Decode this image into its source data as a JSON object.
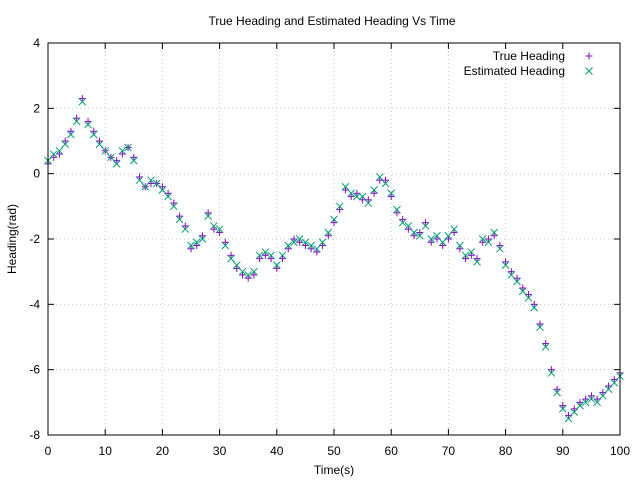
{
  "chart_data": {
    "type": "scatter",
    "title": "True Heading and Estimated Heading Vs Time",
    "xlabel": "Time(s)",
    "ylabel": "Heading(rad)",
    "xlim": [
      0,
      100
    ],
    "ylim": [
      -8,
      4
    ],
    "x_ticks": [
      "0",
      "10",
      "20",
      "30",
      "40",
      "50",
      "60",
      "70",
      "80",
      "90",
      "100"
    ],
    "y_ticks": [
      "4",
      "2",
      "0",
      "-2",
      "-4",
      "-6",
      "-8"
    ],
    "grid": true,
    "legend_position": "top-right",
    "series": [
      {
        "name": "True Heading",
        "marker": "plus",
        "color": "#9400d3",
        "x": [
          0,
          1,
          2,
          3,
          4,
          5,
          6,
          7,
          8,
          9,
          10,
          11,
          12,
          13,
          14,
          15,
          16,
          17,
          18,
          19,
          20,
          21,
          22,
          23,
          24,
          25,
          26,
          27,
          28,
          29,
          30,
          31,
          32,
          33,
          34,
          35,
          36,
          37,
          38,
          39,
          40,
          41,
          42,
          43,
          44,
          45,
          46,
          47,
          48,
          49,
          50,
          51,
          52,
          53,
          54,
          55,
          56,
          57,
          58,
          59,
          60,
          61,
          62,
          63,
          64,
          65,
          66,
          67,
          68,
          69,
          70,
          71,
          72,
          73,
          74,
          75,
          76,
          77,
          78,
          79,
          80,
          81,
          82,
          83,
          84,
          85,
          86,
          87,
          88,
          89,
          90,
          91,
          92,
          93,
          94,
          95,
          96,
          97,
          98,
          99,
          100
        ],
        "y": [
          0.3,
          0.5,
          0.6,
          1.0,
          1.3,
          1.7,
          2.3,
          1.6,
          1.3,
          1.0,
          0.7,
          0.5,
          0.4,
          0.6,
          0.8,
          0.5,
          -0.1,
          -0.4,
          -0.3,
          -0.3,
          -0.4,
          -0.6,
          -0.9,
          -1.3,
          -1.6,
          -2.3,
          -2.2,
          -1.9,
          -1.2,
          -1.7,
          -1.8,
          -2.1,
          -2.5,
          -2.9,
          -3.1,
          -3.2,
          -3.1,
          -2.6,
          -2.5,
          -2.6,
          -2.9,
          -2.6,
          -2.3,
          -2.0,
          -2.1,
          -2.2,
          -2.3,
          -2.4,
          -2.2,
          -1.9,
          -1.5,
          -1.1,
          -0.5,
          -0.7,
          -0.6,
          -0.8,
          -0.8,
          -0.6,
          -0.2,
          -0.2,
          -0.7,
          -1.2,
          -1.4,
          -1.7,
          -1.9,
          -1.8,
          -1.5,
          -2.1,
          -2.0,
          -2.2,
          -2.0,
          -1.8,
          -2.3,
          -2.6,
          -2.5,
          -2.6,
          -2.1,
          -2.0,
          -1.9,
          -2.2,
          -2.7,
          -3.0,
          -3.2,
          -3.5,
          -3.7,
          -4.0,
          -4.6,
          -5.2,
          -6.0,
          -6.6,
          -7.1,
          -7.4,
          -7.2,
          -7.0,
          -6.9,
          -6.8,
          -6.9,
          -6.7,
          -6.5,
          -6.3,
          -6.1
        ]
      },
      {
        "name": "Estimated Heading",
        "marker": "cross",
        "color": "#009e73",
        "x": [
          0,
          1,
          2,
          3,
          4,
          5,
          6,
          7,
          8,
          9,
          10,
          11,
          12,
          13,
          14,
          15,
          16,
          17,
          18,
          19,
          20,
          21,
          22,
          23,
          24,
          25,
          26,
          27,
          28,
          29,
          30,
          31,
          32,
          33,
          34,
          35,
          36,
          37,
          38,
          39,
          40,
          41,
          42,
          43,
          44,
          45,
          46,
          47,
          48,
          49,
          50,
          51,
          52,
          53,
          54,
          55,
          56,
          57,
          58,
          59,
          60,
          61,
          62,
          63,
          64,
          65,
          66,
          67,
          68,
          69,
          70,
          71,
          72,
          73,
          74,
          75,
          76,
          77,
          78,
          79,
          80,
          81,
          82,
          83,
          84,
          85,
          86,
          87,
          88,
          89,
          90,
          91,
          92,
          93,
          94,
          95,
          96,
          97,
          98,
          99,
          100
        ],
        "y": [
          0.4,
          0.6,
          0.7,
          0.9,
          1.2,
          1.6,
          2.2,
          1.5,
          1.2,
          0.9,
          0.7,
          0.5,
          0.3,
          0.7,
          0.8,
          0.4,
          -0.2,
          -0.4,
          -0.2,
          -0.3,
          -0.5,
          -0.7,
          -1.0,
          -1.4,
          -1.7,
          -2.2,
          -2.1,
          -2.0,
          -1.3,
          -1.6,
          -1.7,
          -2.2,
          -2.6,
          -2.8,
          -3.0,
          -3.1,
          -3.0,
          -2.5,
          -2.4,
          -2.5,
          -2.8,
          -2.5,
          -2.2,
          -2.1,
          -2.0,
          -2.1,
          -2.2,
          -2.3,
          -2.1,
          -1.8,
          -1.4,
          -1.0,
          -0.4,
          -0.6,
          -0.7,
          -0.7,
          -0.9,
          -0.5,
          -0.1,
          -0.3,
          -0.6,
          -1.1,
          -1.5,
          -1.6,
          -1.8,
          -1.9,
          -1.6,
          -2.0,
          -1.9,
          -2.1,
          -1.9,
          -1.7,
          -2.2,
          -2.5,
          -2.4,
          -2.7,
          -2.0,
          -2.1,
          -1.8,
          -2.3,
          -2.8,
          -3.1,
          -3.3,
          -3.6,
          -3.8,
          -4.1,
          -4.7,
          -5.3,
          -6.1,
          -6.7,
          -7.2,
          -7.5,
          -7.3,
          -7.1,
          -7.0,
          -6.9,
          -7.0,
          -6.8,
          -6.6,
          -6.4,
          -6.2
        ]
      }
    ]
  }
}
